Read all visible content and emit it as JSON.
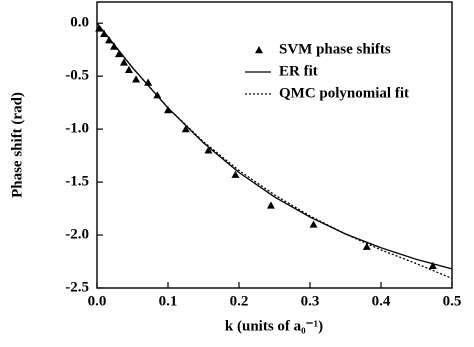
{
  "chart_data": {
    "type": "line",
    "xlabel": "k (units of a₀⁻¹)",
    "ylabel": "Phase shift (rad)",
    "xlim": [
      0,
      0.5
    ],
    "xticks": [
      {
        "value": 0,
        "label": "0.0"
      },
      0.1,
      0.2,
      0.3,
      0.4,
      0.5
    ],
    "ylim": [
      -2.5,
      0.2
    ],
    "yticks": [
      {
        "value": 0,
        "label": "0.0"
      },
      -0.5,
      {
        "value": -1,
        "label": "-1.0"
      },
      -1.5,
      {
        "value": -2,
        "label": "-2.0"
      },
      -2.5
    ],
    "legend": "upper right",
    "series": [
      {
        "name": "SVM phase shifts",
        "color": "#000000",
        "marker": "triangle",
        "style": "none",
        "x": [
          0.003,
          0.01,
          0.017,
          0.024,
          0.031,
          0.038,
          0.045,
          0.055,
          0.072,
          0.085,
          0.1,
          0.125,
          0.157,
          0.195,
          0.245,
          0.305,
          0.38,
          0.473
        ],
        "values": [
          -0.05,
          -0.1,
          -0.16,
          -0.22,
          -0.29,
          -0.37,
          -0.44,
          -0.53,
          -0.56,
          -0.68,
          -0.82,
          -1.0,
          -1.2,
          -1.43,
          -1.72,
          -1.9,
          -2.11,
          -2.29
        ]
      },
      {
        "name": "ER fit",
        "color": "#000000",
        "style": "solid",
        "x": [
          0,
          0.05,
          0.1,
          0.15,
          0.2,
          0.25,
          0.3,
          0.35,
          0.4,
          0.45,
          0.5
        ],
        "values": [
          0,
          -0.42,
          -0.8,
          -1.13,
          -1.41,
          -1.64,
          -1.83,
          -1.99,
          -2.12,
          -2.23,
          -2.32
        ]
      },
      {
        "name": "QMC polynomial fit",
        "color": "#000000",
        "style": "dotted",
        "x": [
          0,
          0.05,
          0.1,
          0.15,
          0.2,
          0.25,
          0.3,
          0.35,
          0.4,
          0.45,
          0.5
        ],
        "values": [
          0,
          -0.42,
          -0.8,
          -1.12,
          -1.39,
          -1.62,
          -1.82,
          -1.99,
          -2.14,
          -2.27,
          -2.41
        ]
      }
    ]
  }
}
